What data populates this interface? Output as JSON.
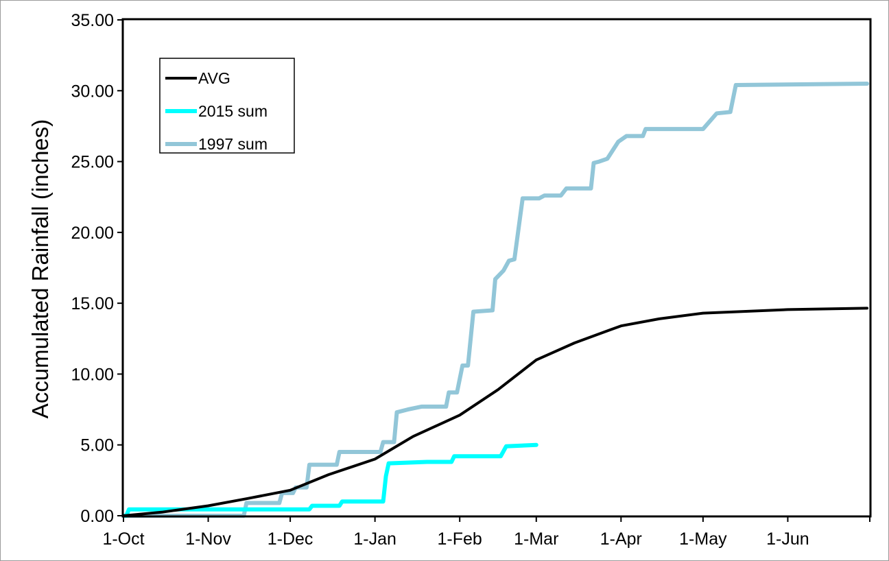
{
  "chart_data": {
    "type": "line",
    "title": "",
    "xlabel": "",
    "ylabel": "Accumulated Rainfall (inches)",
    "ylim": [
      0,
      35
    ],
    "xlim": [
      "1-Oct",
      "30-Jun"
    ],
    "yticks": [
      "0.00",
      "5.00",
      "10.00",
      "15.00",
      "20.00",
      "25.00",
      "30.00",
      "35.00"
    ],
    "xticks": [
      {
        "label": "1-Oct",
        "day": 0
      },
      {
        "label": "1-Nov",
        "day": 31
      },
      {
        "label": "1-Dec",
        "day": 61
      },
      {
        "label": "1-Jan",
        "day": 92
      },
      {
        "label": "1-Feb",
        "day": 123
      },
      {
        "label": "1-Mar",
        "day": 151
      },
      {
        "label": "1-Apr",
        "day": 182
      },
      {
        "label": "1-May",
        "day": 212
      },
      {
        "label": "1-Jun",
        "day": 243
      }
    ],
    "grid": false,
    "legend_position": "top-left",
    "series": [
      {
        "name": "AVG",
        "color": "#000000",
        "points": [
          [
            "1-Oct",
            0.0
          ],
          [
            "15-Oct",
            0.25
          ],
          [
            "1-Nov",
            0.7
          ],
          [
            "15-Nov",
            1.2
          ],
          [
            "1-Dec",
            1.8
          ],
          [
            "15-Dec",
            2.9
          ],
          [
            "1-Jan",
            4.0
          ],
          [
            "15-Jan",
            5.6
          ],
          [
            "1-Feb",
            7.1
          ],
          [
            "15-Feb",
            8.9
          ],
          [
            "1-Mar",
            11.0
          ],
          [
            "15-Mar",
            12.2
          ],
          [
            "1-Apr",
            13.4
          ],
          [
            "15-Apr",
            13.9
          ],
          [
            "1-May",
            14.3
          ],
          [
            "1-Jun",
            14.55
          ],
          [
            "30-Jun",
            14.65
          ]
        ]
      },
      {
        "name": "2015 sum",
        "color": "#00ffff",
        "points": [
          [
            "1-Oct",
            0.0
          ],
          [
            "2-Oct",
            0.0
          ],
          [
            "3-Oct",
            0.45
          ],
          [
            "8-Dec",
            0.45
          ],
          [
            "9-Dec",
            0.7
          ],
          [
            "19-Dec",
            0.7
          ],
          [
            "20-Dec",
            1.0
          ],
          [
            "4-Jan",
            1.0
          ],
          [
            "5-Jan",
            2.8
          ],
          [
            "6-Jan",
            3.7
          ],
          [
            "20-Jan",
            3.8
          ],
          [
            "29-Jan",
            3.8
          ],
          [
            "30-Jan",
            4.2
          ],
          [
            "16-Feb",
            4.2
          ],
          [
            "18-Feb",
            4.9
          ],
          [
            "1-Mar",
            5.0
          ]
        ]
      },
      {
        "name": "1997 sum",
        "color": "#92c6d8",
        "points": [
          [
            "1-Oct",
            0.0
          ],
          [
            "14-Nov",
            0.0
          ],
          [
            "15-Nov",
            0.9
          ],
          [
            "27-Nov",
            0.9
          ],
          [
            "28-Nov",
            1.6
          ],
          [
            "2-Dec",
            1.6
          ],
          [
            "3-Dec",
            2.0
          ],
          [
            "7-Dec",
            2.0
          ],
          [
            "8-Dec",
            3.6
          ],
          [
            "18-Dec",
            3.6
          ],
          [
            "19-Dec",
            4.5
          ],
          [
            "3-Jan",
            4.5
          ],
          [
            "4-Jan",
            5.2
          ],
          [
            "8-Jan",
            5.2
          ],
          [
            "9-Jan",
            7.3
          ],
          [
            "13-Jan",
            7.5
          ],
          [
            "18-Jan",
            7.7
          ],
          [
            "27-Jan",
            7.7
          ],
          [
            "28-Jan",
            8.7
          ],
          [
            "31-Jan",
            8.7
          ],
          [
            "2-Feb",
            10.6
          ],
          [
            "4-Feb",
            10.6
          ],
          [
            "6-Feb",
            14.4
          ],
          [
            "13-Feb",
            14.5
          ],
          [
            "14-Feb",
            16.7
          ],
          [
            "17-Feb",
            17.3
          ],
          [
            "19-Feb",
            18.0
          ],
          [
            "21-Feb",
            18.1
          ],
          [
            "24-Feb",
            22.4
          ],
          [
            "2-Mar",
            22.4
          ],
          [
            "4-Mar",
            22.6
          ],
          [
            "10-Mar",
            22.6
          ],
          [
            "12-Mar",
            23.1
          ],
          [
            "21-Mar",
            23.1
          ],
          [
            "22-Mar",
            24.9
          ],
          [
            "24-Mar",
            25.0
          ],
          [
            "27-Mar",
            25.2
          ],
          [
            "31-Mar",
            26.4
          ],
          [
            "3-Apr",
            26.8
          ],
          [
            "9-Apr",
            26.8
          ],
          [
            "10-Apr",
            27.3
          ],
          [
            "1-May",
            27.3
          ],
          [
            "6-May",
            28.4
          ],
          [
            "11-May",
            28.5
          ],
          [
            "13-May",
            30.4
          ],
          [
            "30-Jun",
            30.5
          ]
        ]
      }
    ]
  }
}
